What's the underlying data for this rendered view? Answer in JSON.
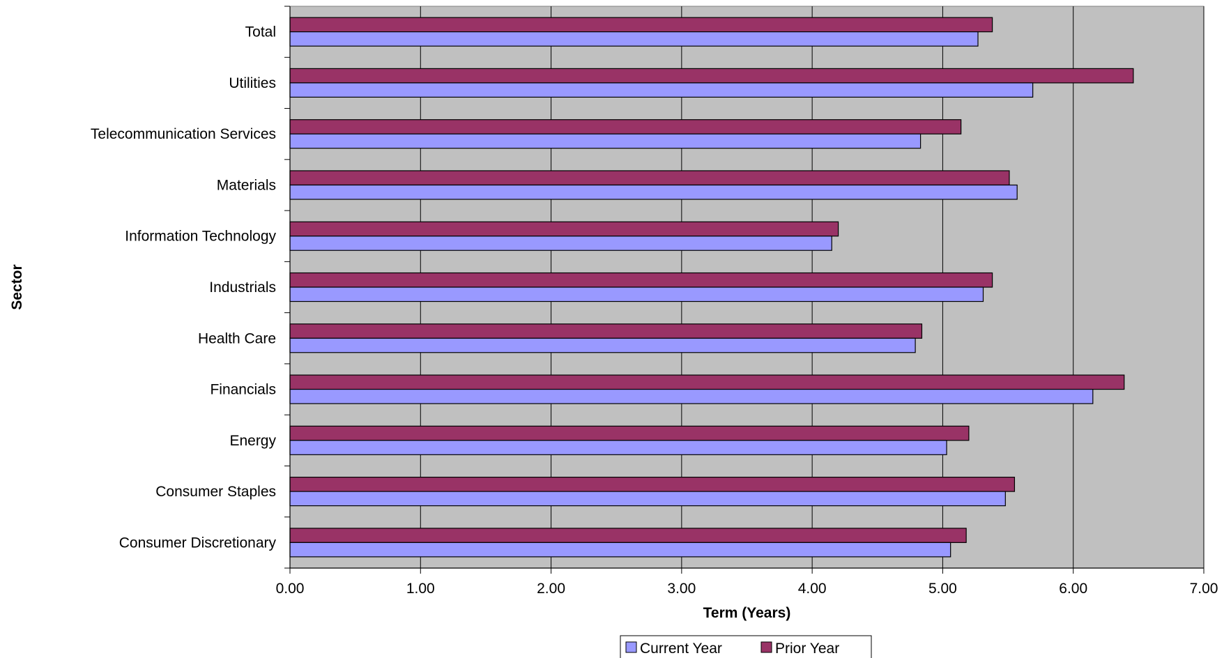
{
  "chart_data": {
    "type": "bar",
    "orientation": "horizontal",
    "title": "",
    "xlabel": "Term (Years)",
    "ylabel": "Sector",
    "xlim": [
      0,
      7
    ],
    "x_ticks": [
      "0.00",
      "1.00",
      "2.00",
      "3.00",
      "4.00",
      "5.00",
      "6.00",
      "7.00"
    ],
    "grid": true,
    "legend_position": "bottom",
    "categories": [
      "Total",
      "Utilities",
      "Telecommunication Services",
      "Materials",
      "Information Technology",
      "Industrials",
      "Health Care",
      "Financials",
      "Energy",
      "Consumer Staples",
      "Consumer Discretionary"
    ],
    "series": [
      {
        "name": "Prior Year",
        "color": "#993366",
        "values": [
          5.38,
          6.46,
          5.14,
          5.51,
          4.2,
          5.38,
          4.84,
          6.39,
          5.2,
          5.55,
          5.18
        ]
      },
      {
        "name": "Current Year",
        "color": "#9999ff",
        "values": [
          5.27,
          5.69,
          4.83,
          5.57,
          4.15,
          5.31,
          4.79,
          6.15,
          5.03,
          5.48,
          5.06
        ]
      }
    ],
    "legend_order": [
      "Current Year",
      "Prior Year"
    ],
    "plot_background": "#c0c0c0"
  }
}
